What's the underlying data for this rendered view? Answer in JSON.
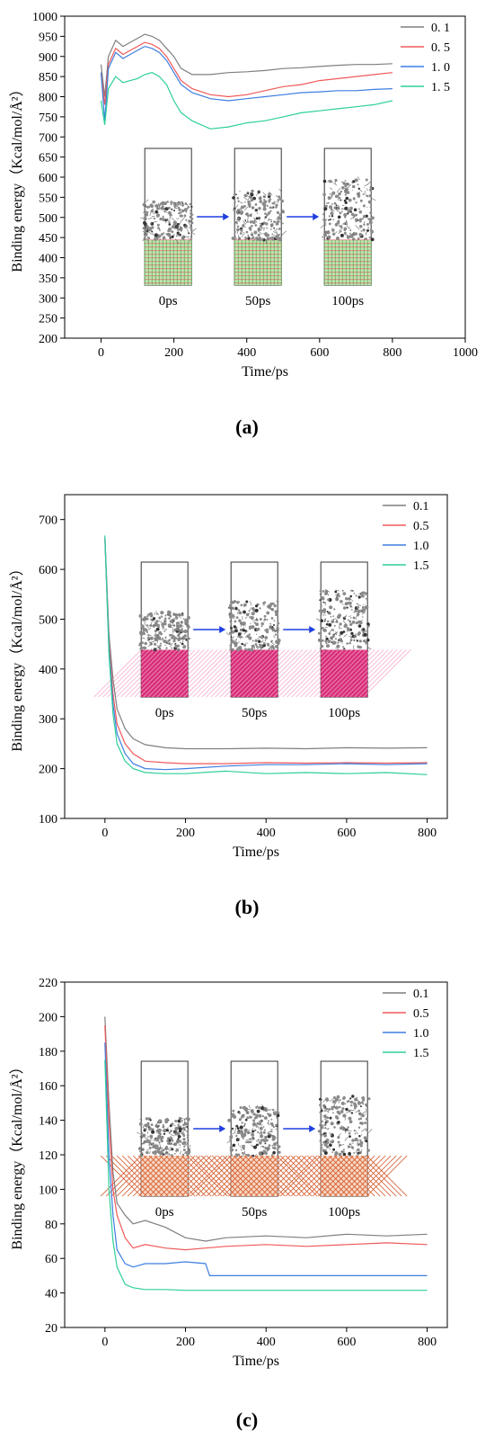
{
  "captions": [
    "(a)",
    "(b)",
    "(c)"
  ],
  "colors": {
    "s01": "#7f7f7f",
    "s05": "#f05a5a",
    "s10": "#3d7ee0",
    "s15": "#2ecf9a",
    "arrow": "#1f3fe0"
  },
  "chart_data": [
    {
      "type": "line",
      "panel": "a",
      "xlabel": "Time/ps",
      "ylabel": "Binding energy（Kcal/mol/Å²）",
      "xlim": [
        -100,
        1000
      ],
      "ylim": [
        200,
        1000
      ],
      "xticks": [
        0,
        200,
        400,
        600,
        800,
        1000
      ],
      "yticks": [
        200,
        250,
        300,
        350,
        400,
        450,
        500,
        550,
        600,
        650,
        700,
        750,
        800,
        850,
        900,
        950,
        1000
      ],
      "legend": {
        "placement": "top-right",
        "entries": [
          "0. 1",
          "0. 5",
          "1. 0",
          "1. 5"
        ]
      },
      "snapshots": [
        "0ps",
        "50ps",
        "100ps"
      ],
      "series": [
        {
          "name": "0. 1",
          "color": "#7f7f7f",
          "x": [
            0,
            10,
            20,
            40,
            60,
            80,
            100,
            120,
            140,
            160,
            180,
            200,
            220,
            250,
            300,
            350,
            400,
            450,
            500,
            550,
            600,
            650,
            700,
            750,
            800
          ],
          "y": [
            880,
            800,
            900,
            940,
            925,
            935,
            945,
            955,
            950,
            940,
            920,
            900,
            870,
            855,
            855,
            860,
            862,
            865,
            870,
            872,
            875,
            878,
            880,
            880,
            882
          ]
        },
        {
          "name": "0. 5",
          "color": "#f05a5a",
          "x": [
            0,
            10,
            20,
            40,
            60,
            80,
            100,
            120,
            140,
            160,
            180,
            200,
            220,
            250,
            300,
            350,
            400,
            450,
            500,
            550,
            600,
            650,
            700,
            750,
            800
          ],
          "y": [
            860,
            780,
            880,
            920,
            905,
            915,
            925,
            935,
            930,
            920,
            900,
            870,
            840,
            820,
            805,
            800,
            805,
            815,
            825,
            830,
            840,
            845,
            850,
            855,
            860
          ]
        },
        {
          "name": "1. 0",
          "color": "#3d7ee0",
          "x": [
            0,
            10,
            20,
            40,
            60,
            80,
            100,
            120,
            140,
            160,
            180,
            200,
            220,
            250,
            300,
            350,
            400,
            450,
            500,
            550,
            600,
            650,
            700,
            750,
            800
          ],
          "y": [
            860,
            740,
            870,
            910,
            895,
            905,
            915,
            925,
            920,
            910,
            890,
            860,
            830,
            810,
            795,
            790,
            795,
            800,
            805,
            810,
            812,
            815,
            815,
            818,
            820
          ]
        },
        {
          "name": "1. 5",
          "color": "#2ecf9a",
          "x": [
            0,
            10,
            20,
            40,
            60,
            80,
            100,
            120,
            140,
            160,
            180,
            200,
            220,
            250,
            300,
            350,
            400,
            450,
            500,
            550,
            600,
            650,
            700,
            750,
            800
          ],
          "y": [
            790,
            730,
            820,
            850,
            835,
            840,
            845,
            855,
            860,
            850,
            830,
            790,
            760,
            740,
            720,
            725,
            735,
            740,
            750,
            760,
            765,
            770,
            775,
            780,
            790
          ]
        }
      ]
    },
    {
      "type": "line",
      "panel": "b",
      "xlabel": "Time/ps",
      "ylabel": "Binding energy（Kcal/mol/Å²）",
      "xlim": [
        -100,
        850
      ],
      "ylim": [
        100,
        750
      ],
      "xticks": [
        0,
        200,
        400,
        600,
        800
      ],
      "yticks": [
        100,
        200,
        300,
        400,
        500,
        600,
        700
      ],
      "legend": {
        "placement": "top-right",
        "entries": [
          "0.1",
          "0.5",
          "1.0",
          "1.5"
        ]
      },
      "snapshots": [
        "0ps",
        "50ps",
        "100ps"
      ],
      "series": [
        {
          "name": "0.1",
          "color": "#7f7f7f",
          "x": [
            0,
            10,
            20,
            30,
            50,
            70,
            100,
            150,
            200,
            300,
            400,
            500,
            600,
            700,
            800
          ],
          "y": [
            665,
            470,
            380,
            320,
            280,
            260,
            248,
            242,
            240,
            240,
            241,
            240,
            242,
            241,
            242
          ]
        },
        {
          "name": "0.5",
          "color": "#f05a5a",
          "x": [
            0,
            10,
            20,
            30,
            50,
            70,
            100,
            150,
            200,
            300,
            400,
            500,
            600,
            700,
            800
          ],
          "y": [
            660,
            450,
            350,
            290,
            250,
            230,
            215,
            212,
            210,
            210,
            212,
            211,
            212,
            211,
            212
          ]
        },
        {
          "name": "1.0",
          "color": "#3d7ee0",
          "x": [
            0,
            10,
            20,
            30,
            50,
            70,
            100,
            150,
            200,
            300,
            400,
            500,
            600,
            700,
            800
          ],
          "y": [
            662,
            440,
            330,
            270,
            230,
            210,
            200,
            198,
            200,
            205,
            208,
            208,
            210,
            208,
            210
          ]
        },
        {
          "name": "1.5",
          "color": "#2ecf9a",
          "x": [
            0,
            10,
            20,
            30,
            50,
            70,
            100,
            150,
            200,
            300,
            400,
            500,
            600,
            700,
            800
          ],
          "y": [
            668,
            430,
            310,
            250,
            215,
            200,
            192,
            190,
            190,
            195,
            190,
            192,
            190,
            192,
            188
          ]
        }
      ]
    },
    {
      "type": "line",
      "panel": "c",
      "xlabel": "Time/ps",
      "ylabel": "Binding energy（Kcal/mol/Å²）",
      "xlim": [
        -100,
        850
      ],
      "ylim": [
        20,
        220
      ],
      "xticks": [
        0,
        200,
        400,
        600,
        800
      ],
      "yticks": [
        20,
        40,
        60,
        80,
        100,
        120,
        140,
        160,
        180,
        200,
        220
      ],
      "legend": {
        "placement": "top-right",
        "entries": [
          "0.1",
          "0.5",
          "1.0",
          "1.5"
        ]
      },
      "snapshots": [
        "0ps",
        "50ps",
        "100ps"
      ],
      "series": [
        {
          "name": "0.1",
          "color": "#7f7f7f",
          "x": [
            0,
            10,
            20,
            30,
            50,
            70,
            100,
            150,
            200,
            250,
            300,
            400,
            500,
            600,
            700,
            800
          ],
          "y": [
            200,
            150,
            110,
            92,
            85,
            80,
            82,
            78,
            72,
            70,
            72,
            73,
            72,
            74,
            73,
            74
          ]
        },
        {
          "name": "0.5",
          "color": "#f05a5a",
          "x": [
            0,
            10,
            20,
            30,
            50,
            70,
            100,
            150,
            200,
            250,
            300,
            400,
            500,
            600,
            700,
            800
          ],
          "y": [
            195,
            140,
            100,
            85,
            72,
            66,
            68,
            66,
            65,
            66,
            67,
            68,
            67,
            68,
            69,
            68
          ]
        },
        {
          "name": "1.0",
          "color": "#3d7ee0",
          "x": [
            0,
            10,
            20,
            30,
            50,
            70,
            100,
            150,
            200,
            250,
            260,
            300,
            400,
            500,
            600,
            700,
            800
          ],
          "y": [
            185,
            120,
            85,
            65,
            57,
            55,
            57,
            57,
            58,
            57,
            50,
            50,
            50,
            50,
            50,
            50,
            50
          ]
        },
        {
          "name": "1.5",
          "color": "#2ecf9a",
          "x": [
            0,
            10,
            20,
            30,
            50,
            70,
            100,
            150,
            200,
            300,
            400,
            500,
            600,
            700,
            800
          ],
          "y": [
            175,
            100,
            70,
            55,
            45,
            43,
            42,
            42,
            41.5,
            41.5,
            41.5,
            41.5,
            41.5,
            41.5,
            41.5
          ]
        }
      ]
    }
  ]
}
